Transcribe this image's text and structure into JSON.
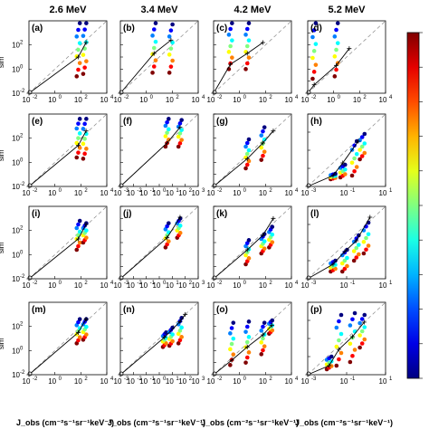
{
  "chart_data": {
    "type": "scatter",
    "layout": "4x4 grid of log-log scatter panels with colorbar",
    "column_titles": [
      "2.6 MeV",
      "3.4 MeV",
      "4.2 MeV",
      "5.2 MeV"
    ],
    "row_axis_label_fragment": "J",
    "xlabel_main": "J",
    "xlabel_sub": "obs",
    "xlabel_units": "(cm",
    "xlabel_units_full": "(cm⁻²s⁻¹sr⁻¹keV⁻¹)",
    "xlabel_display": "J_obs (cm⁻²s⁻¹sr⁻¹keV⁻¹)",
    "ylabel_display": "J_sim",
    "ylabel_fragment": "sim",
    "log_scale": true,
    "diagonal_reference": "dashed 1:1 line",
    "fit_line": "solid black line with + markers",
    "colorbar": {
      "colormap": "jet",
      "orientation": "vertical",
      "position": "right"
    },
    "panels": [
      {
        "label": "(a)",
        "row": 0,
        "col": 0,
        "xlim_exp": [
          -2,
          4
        ],
        "ylim_exp": [
          -2,
          4
        ],
        "xticks": [
          "10",
          "10",
          "10",
          "10"
        ],
        "xtick_exp": [
          "-2",
          "0",
          "2",
          "4"
        ],
        "yticks": [
          "10",
          "10",
          "10"
        ],
        "ytick_exp": [
          "-2",
          "0",
          "2"
        ],
        "point_columns": [
          {
            "x_exp": 1.8,
            "y_exp_range": [
              -0.6,
              3.8
            ]
          },
          {
            "x_exp": 2.3,
            "y_exp_range": [
              -0.4,
              3.8
            ]
          }
        ],
        "fit": [
          [
            -2,
            -2
          ],
          [
            1.8,
            1.0
          ],
          [
            2.4,
            2.2
          ]
        ]
      },
      {
        "label": "(b)",
        "row": 0,
        "col": 1,
        "xlim_exp": [
          -2,
          4
        ],
        "ylim_exp": [
          -2,
          4
        ],
        "xticks": [
          "10",
          "10",
          "10",
          "10"
        ],
        "xtick_exp": [
          "-2",
          "0",
          "2",
          "4"
        ],
        "point_columns": [
          {
            "x_exp": 0.6,
            "y_exp_range": [
              -0.3,
              3.8
            ]
          },
          {
            "x_exp": 1.9,
            "y_exp_range": [
              -0.3,
              3.7
            ]
          }
        ],
        "fit": [
          [
            -2,
            -2
          ],
          [
            0.6,
            1.3
          ],
          [
            1.9,
            2.4
          ]
        ]
      },
      {
        "label": "(c)",
        "row": 0,
        "col": 2,
        "xlim_exp": [
          -2,
          4
        ],
        "ylim_exp": [
          -2,
          4
        ],
        "xticks": [
          "10",
          "10",
          "10",
          "10"
        ],
        "xtick_exp": [
          "-2",
          "0",
          "2",
          "4"
        ],
        "point_columns": [
          {
            "x_exp": -0.7,
            "y_exp_range": [
              0.0,
              3.8
            ]
          },
          {
            "x_exp": 0.6,
            "y_exp_range": [
              0.0,
              3.8
            ]
          }
        ],
        "fit": [
          [
            -2,
            -2
          ],
          [
            -0.7,
            0.4
          ],
          [
            0.6,
            1.3
          ],
          [
            1.8,
            2.2
          ]
        ]
      },
      {
        "label": "(d)",
        "row": 0,
        "col": 3,
        "xlim_exp": [
          -2,
          4
        ],
        "ylim_exp": [
          -2,
          4
        ],
        "xticks": [
          "10",
          "10",
          "10",
          "10"
        ],
        "xtick_exp": [
          "-2",
          "0",
          "2",
          "4"
        ],
        "point_columns": [
          {
            "x_exp": -1.5,
            "y_exp_range": [
              -0.8,
              3.8
            ]
          },
          {
            "x_exp": 0.2,
            "y_exp_range": [
              -0.6,
              3.8
            ]
          }
        ],
        "fit": [
          [
            -2,
            -2
          ],
          [
            -1.5,
            -1.3
          ],
          [
            0.2,
            0.3
          ],
          [
            1.2,
            1.7
          ]
        ]
      },
      {
        "label": "(e)",
        "row": 1,
        "col": 0,
        "xlim_exp": [
          -2,
          4
        ],
        "ylim_exp": [
          -2,
          4
        ],
        "xticks": [
          "10",
          "10",
          "10",
          "10"
        ],
        "xtick_exp": [
          "-2",
          "0",
          "2",
          "4"
        ],
        "yticks": [
          "10",
          "10",
          "10"
        ],
        "ytick_exp": [
          "-2",
          "0",
          "2"
        ],
        "point_columns": [
          {
            "x_exp": 1.8,
            "y_exp_range": [
              0.4,
              3.6
            ]
          },
          {
            "x_exp": 2.3,
            "y_exp_range": [
              0.3,
              3.6
            ]
          }
        ],
        "fit": [
          [
            -2,
            -2
          ],
          [
            1.8,
            1.4
          ],
          [
            2.4,
            2.6
          ]
        ]
      },
      {
        "label": "(f)",
        "row": 1,
        "col": 1,
        "xlim_exp": [
          -3,
          3
        ],
        "ylim_exp": [
          -3,
          3
        ],
        "xticks": [
          "10",
          "10",
          "10",
          "10",
          "10",
          "10",
          "10"
        ],
        "xtick_exp": [
          "-3",
          "-2",
          "-1",
          "0",
          "1",
          "2",
          "3"
        ],
        "point_columns": [
          {
            "x_exp": 0.6,
            "y_exp_range": [
              0.3,
              2.6
            ]
          },
          {
            "x_exp": 1.6,
            "y_exp_range": [
              0.3,
              2.5
            ]
          }
        ],
        "fit": [
          [
            -3,
            -3
          ],
          [
            0.6,
            0.6
          ],
          [
            1.6,
            1.9
          ]
        ]
      },
      {
        "label": "(g)",
        "row": 1,
        "col": 2,
        "xlim_exp": [
          -2,
          4
        ],
        "ylim_exp": [
          -2,
          4
        ],
        "xticks": [
          "10",
          "10",
          "10",
          "10"
        ],
        "xtick_exp": [
          "-2",
          "0",
          "2",
          "4"
        ],
        "point_columns": [
          {
            "x_exp": 0.6,
            "y_exp_range": [
              -0.5,
              1.9
            ]
          },
          {
            "x_exp": 1.8,
            "y_exp_range": [
              0.2,
              2.9
            ]
          }
        ],
        "fit": [
          [
            -2,
            -2
          ],
          [
            0.6,
            0.3
          ],
          [
            1.8,
            1.6
          ],
          [
            2.6,
            2.6
          ]
        ]
      },
      {
        "label": "(h)",
        "row": 1,
        "col": 3,
        "xlim_exp": [
          -3,
          1
        ],
        "ylim_exp": [
          -3,
          1
        ],
        "xticks": [
          "10",
          "10",
          "10"
        ],
        "xtick_exp": [
          "-3",
          "-1",
          "1"
        ],
        "point_columns": [
          {
            "x_exp": -1.7,
            "y_exp_range": [
              -2.6,
              -2.3
            ]
          },
          {
            "x_exp": -1.2,
            "y_exp_range": [
              -2.5,
              -1.8
            ]
          },
          {
            "x_exp": -0.6,
            "y_exp_range": [
              -2.4,
              -0.5
            ]
          },
          {
            "x_exp": -0.2,
            "y_exp_range": [
              -1.5,
              -0.1
            ]
          }
        ],
        "fit": [
          [
            -3,
            -3
          ],
          [
            -1.7,
            -2.4
          ],
          [
            -1.2,
            -1.7
          ],
          [
            -0.4,
            -0.5
          ]
        ]
      },
      {
        "label": "(i)",
        "row": 2,
        "col": 0,
        "xlim_exp": [
          -2,
          4
        ],
        "ylim_exp": [
          -2,
          4
        ],
        "xticks": [
          "10",
          "10",
          "10",
          "10"
        ],
        "xtick_exp": [
          "-2",
          "0",
          "2",
          "4"
        ],
        "yticks": [
          "10",
          "10",
          "10"
        ],
        "ytick_exp": [
          "-2",
          "0",
          "2"
        ],
        "point_columns": [
          {
            "x_exp": 1.8,
            "y_exp_range": [
              0.4,
              2.8
            ]
          },
          {
            "x_exp": 2.3,
            "y_exp_range": [
              1.0,
              2.6
            ]
          }
        ],
        "fit": [
          [
            -2,
            -2
          ],
          [
            1.8,
            1.3
          ],
          [
            2.4,
            2.5
          ]
        ]
      },
      {
        "label": "(j)",
        "row": 2,
        "col": 1,
        "xlim_exp": [
          -3,
          3
        ],
        "ylim_exp": [
          -3,
          3
        ],
        "xticks": [
          "10",
          "10",
          "10",
          "10",
          "10",
          "10",
          "10"
        ],
        "xtick_exp": [
          "-3",
          "-2",
          "-1",
          "0",
          "1",
          "2",
          "3"
        ],
        "point_columns": [
          {
            "x_exp": 0.6,
            "y_exp_range": [
              -0.4,
              1.6
            ]
          },
          {
            "x_exp": 1.5,
            "y_exp_range": [
              0.4,
              2.0
            ]
          }
        ],
        "fit": [
          [
            -3,
            -3
          ],
          [
            0.6,
            0.4
          ],
          [
            1.6,
            2.1
          ]
        ]
      },
      {
        "label": "(k)",
        "row": 2,
        "col": 2,
        "xlim_exp": [
          -2,
          4
        ],
        "ylim_exp": [
          -2,
          4
        ],
        "xticks": [
          "10",
          "10",
          "10",
          "10"
        ],
        "xtick_exp": [
          "-2",
          "0",
          "2",
          "4"
        ],
        "point_columns": [
          {
            "x_exp": 0.6,
            "y_exp_range": [
              -0.8,
              1.2
            ]
          },
          {
            "x_exp": 1.8,
            "y_exp_range": [
              0.1,
              1.7
            ]
          },
          {
            "x_exp": 2.4,
            "y_exp_range": [
              0.6,
              2.3
            ]
          }
        ],
        "fit": [
          [
            -2,
            -2
          ],
          [
            0.6,
            0.4
          ],
          [
            1.8,
            1.6
          ],
          [
            2.6,
            3.0
          ]
        ]
      },
      {
        "label": "(l)",
        "row": 2,
        "col": 3,
        "xlim_exp": [
          -3,
          1
        ],
        "ylim_exp": [
          -3,
          1
        ],
        "xticks": [
          "10",
          "10",
          "10"
        ],
        "xtick_exp": [
          "-3",
          "-1",
          "1"
        ],
        "point_columns": [
          {
            "x_exp": -1.7,
            "y_exp_range": [
              -2.6,
              -2.0
            ]
          },
          {
            "x_exp": -1.1,
            "y_exp_range": [
              -2.6,
              -1.4
            ]
          },
          {
            "x_exp": -0.5,
            "y_exp_range": [
              -2.0,
              -0.6
            ]
          },
          {
            "x_exp": 0.0,
            "y_exp_range": [
              -1.6,
              0.1
            ]
          }
        ],
        "fit": [
          [
            -3,
            -3
          ],
          [
            -1.7,
            -2.2
          ],
          [
            -1.1,
            -1.5
          ],
          [
            -0.5,
            -0.9
          ],
          [
            0.2,
            0.4
          ]
        ]
      },
      {
        "label": "(m)",
        "row": 3,
        "col": 0,
        "xlim_exp": [
          -2,
          4
        ],
        "ylim_exp": [
          -2,
          4
        ],
        "xticks": [
          "10",
          "10",
          "10",
          "10"
        ],
        "xtick_exp": [
          "-2",
          "0",
          "2",
          "4"
        ],
        "yticks": [
          "10",
          "10",
          "10"
        ],
        "ytick_exp": [
          "-2",
          "0",
          "2"
        ],
        "point_columns": [
          {
            "x_exp": 1.8,
            "y_exp_range": [
              0.6,
              2.6
            ]
          },
          {
            "x_exp": 2.3,
            "y_exp_range": [
              0.9,
              2.6
            ]
          }
        ],
        "fit": [
          [
            -2,
            -2
          ],
          [
            1.8,
            1.5
          ],
          [
            2.4,
            2.6
          ]
        ]
      },
      {
        "label": "(n)",
        "row": 3,
        "col": 1,
        "xlim_exp": [
          -3,
          3
        ],
        "ylim_exp": [
          -3,
          3
        ],
        "xticks": [
          "10",
          "10",
          "10",
          "10",
          "10",
          "10",
          "10"
        ],
        "xtick_exp": [
          "-3",
          "-2",
          "-1",
          "0",
          "1",
          "2",
          "3"
        ],
        "point_columns": [
          {
            "x_exp": 0.4,
            "y_exp_range": [
              -0.7,
              0.5
            ]
          },
          {
            "x_exp": 0.9,
            "y_exp_range": [
              -0.6,
              0.9
            ]
          },
          {
            "x_exp": 1.6,
            "y_exp_range": [
              -0.4,
              1.7
            ]
          }
        ],
        "fit": [
          [
            -3,
            -3
          ],
          [
            0.4,
            0.1
          ],
          [
            1.6,
            1.4
          ],
          [
            2.0,
            2.0
          ]
        ]
      },
      {
        "label": "(o)",
        "row": 3,
        "col": 2,
        "xlim_exp": [
          -2,
          4
        ],
        "ylim_exp": [
          -2,
          4
        ],
        "xticks": [
          "10",
          "10",
          "10",
          "10"
        ],
        "xtick_exp": [
          "-2",
          "0",
          "2",
          "4"
        ],
        "point_columns": [
          {
            "x_exp": -0.6,
            "y_exp_range": [
              -1.2,
              2.3
            ]
          },
          {
            "x_exp": 0.6,
            "y_exp_range": [
              -1.0,
              2.4
            ]
          },
          {
            "x_exp": 1.8,
            "y_exp_range": [
              -0.3,
              2.3
            ]
          },
          {
            "x_exp": 2.4,
            "y_exp_range": [
              1.4,
              2.5
            ]
          }
        ],
        "fit": [
          [
            -2,
            -2
          ],
          [
            -0.6,
            -0.8
          ],
          [
            0.6,
            0.3
          ],
          [
            1.8,
            1.3
          ],
          [
            2.5,
            2.1
          ]
        ]
      },
      {
        "label": "(p)",
        "row": 3,
        "col": 3,
        "xlim_exp": [
          -3,
          1
        ],
        "ylim_exp": [
          -3,
          1
        ],
        "xticks": [
          "10",
          "10",
          "10"
        ],
        "xtick_exp": [
          "-3",
          "-1",
          "1"
        ],
        "point_columns": [
          {
            "x_exp": -1.9,
            "y_exp_range": [
              -2.7,
              -2.0
            ]
          },
          {
            "x_exp": -1.4,
            "y_exp_range": [
              -2.5,
              0.3
            ]
          },
          {
            "x_exp": -0.7,
            "y_exp_range": [
              -2.3,
              0.4
            ]
          },
          {
            "x_exp": -0.2,
            "y_exp_range": [
              -1.5,
              0.3
            ]
          }
        ],
        "fit": [
          [
            -3,
            -3
          ],
          [
            -1.9,
            -2.5
          ],
          [
            -1.4,
            -1.6
          ],
          [
            -0.7,
            -0.9
          ],
          [
            -0.1,
            -0.1
          ]
        ]
      }
    ]
  }
}
